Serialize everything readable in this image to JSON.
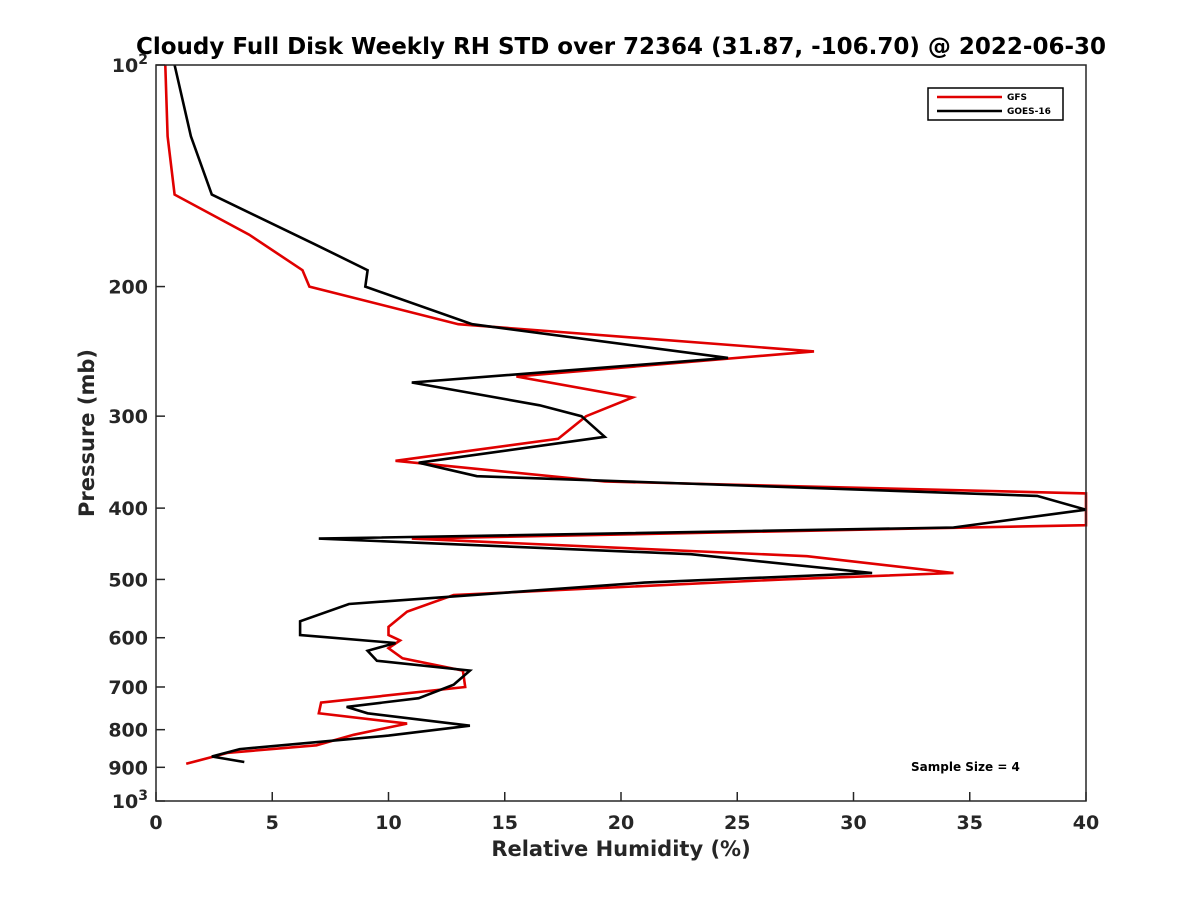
{
  "chart_data": {
    "type": "line",
    "title": "Cloudy Full Disk Weekly RH STD over 72364 (31.87, -106.70) @ 2022-06-30",
    "xlabel": "Relative Humidity (%)",
    "ylabel": "Pressure (mb)",
    "xlim": [
      0,
      40
    ],
    "ylim": [
      100,
      1000
    ],
    "y_scale": "log",
    "y_reversed": true,
    "grid": false,
    "legend_position": "top-right",
    "note": "Sample Size = 4",
    "x_ticks": [
      "0",
      "5",
      "10",
      "15",
      "20",
      "25",
      "30",
      "35",
      "40"
    ],
    "y_ticks": [
      {
        "value": 100,
        "base": "10",
        "exp": "2"
      },
      {
        "value": 200,
        "label": "200"
      },
      {
        "value": 300,
        "label": "300"
      },
      {
        "value": 400,
        "label": "400"
      },
      {
        "value": 500,
        "label": "500"
      },
      {
        "value": 600,
        "label": "600"
      },
      {
        "value": 700,
        "label": "700"
      },
      {
        "value": 800,
        "label": "800"
      },
      {
        "value": 900,
        "label": "900"
      },
      {
        "value": 1000,
        "base": "10",
        "exp": "3"
      }
    ],
    "series": [
      {
        "name": "GFS",
        "color": "#e00000",
        "points": [
          [
            0.4,
            100
          ],
          [
            0.5,
            125
          ],
          [
            0.8,
            150
          ],
          [
            4.0,
            170
          ],
          [
            6.3,
            190
          ],
          [
            6.6,
            200
          ],
          [
            13.0,
            225
          ],
          [
            28.3,
            245
          ],
          [
            15.5,
            265
          ],
          [
            20.5,
            283
          ],
          [
            18.5,
            300
          ],
          [
            17.3,
            322
          ],
          [
            10.3,
            345
          ],
          [
            19.3,
            368
          ],
          [
            40,
            382
          ],
          [
            40,
            422
          ],
          [
            11.0,
            440
          ],
          [
            28.0,
            465
          ],
          [
            34.3,
            490
          ],
          [
            27.0,
            500
          ],
          [
            12.8,
            525
          ],
          [
            10.8,
            553
          ],
          [
            10.0,
            580
          ],
          [
            10.0,
            595
          ],
          [
            10.5,
            605
          ],
          [
            10.0,
            620
          ],
          [
            10.6,
            640
          ],
          [
            13.2,
            665
          ],
          [
            13.3,
            700
          ],
          [
            7.1,
            735
          ],
          [
            7.0,
            760
          ],
          [
            10.8,
            785
          ],
          [
            8.5,
            813
          ],
          [
            6.9,
            840
          ],
          [
            3.1,
            860
          ],
          [
            1.3,
            890
          ]
        ]
      },
      {
        "name": "GOES-16",
        "color": "#000000",
        "points": [
          [
            0.8,
            100
          ],
          [
            1.5,
            125
          ],
          [
            2.4,
            150
          ],
          [
            6.8,
            175
          ],
          [
            9.1,
            190
          ],
          [
            9.0,
            200
          ],
          [
            13.6,
            225
          ],
          [
            24.6,
            250
          ],
          [
            11.0,
            270
          ],
          [
            16.5,
            290
          ],
          [
            18.3,
            300
          ],
          [
            19.3,
            320
          ],
          [
            11.3,
            347
          ],
          [
            13.8,
            362
          ],
          [
            37.9,
            385
          ],
          [
            40,
            402
          ],
          [
            34.3,
            425
          ],
          [
            7.0,
            440
          ],
          [
            23.0,
            462
          ],
          [
            30.8,
            490
          ],
          [
            21.0,
            505
          ],
          [
            8.3,
            540
          ],
          [
            6.2,
            570
          ],
          [
            6.2,
            595
          ],
          [
            10.3,
            610
          ],
          [
            9.1,
            625
          ],
          [
            9.5,
            645
          ],
          [
            13.5,
            665
          ],
          [
            12.8,
            695
          ],
          [
            11.3,
            725
          ],
          [
            8.2,
            745
          ],
          [
            9.1,
            760
          ],
          [
            13.5,
            790
          ],
          [
            10.0,
            815
          ],
          [
            3.6,
            850
          ],
          [
            2.4,
            870
          ],
          [
            3.8,
            885
          ]
        ]
      }
    ]
  }
}
